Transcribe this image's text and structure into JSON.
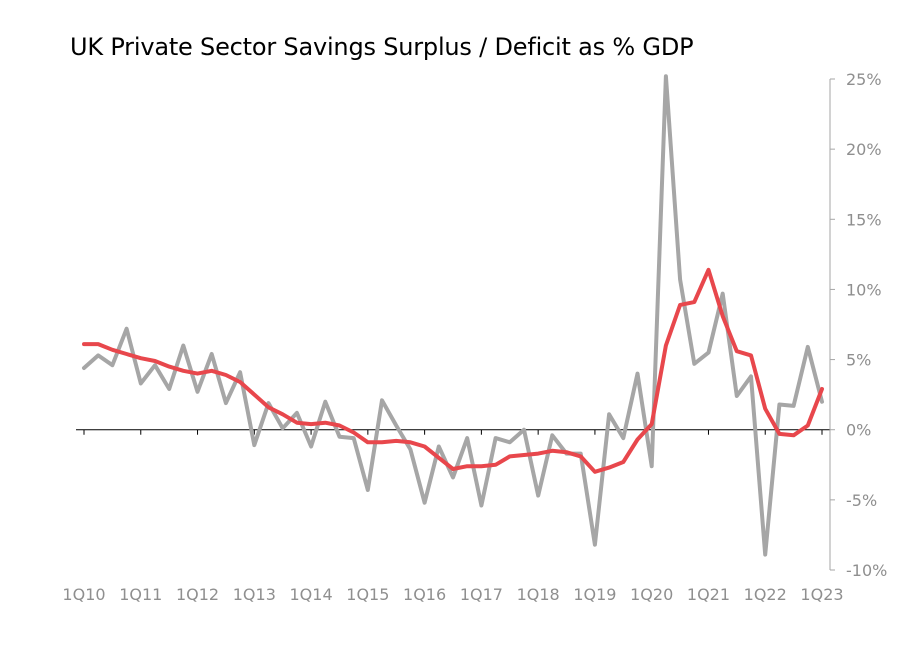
{
  "chart_data": {
    "type": "line",
    "title": "UK Private Sector Savings Surplus / Deficit as % GDP",
    "x": [
      "1Q10",
      "2Q10",
      "3Q10",
      "4Q10",
      "1Q11",
      "2Q11",
      "3Q11",
      "4Q11",
      "1Q12",
      "2Q12",
      "3Q12",
      "4Q12",
      "1Q13",
      "2Q13",
      "3Q13",
      "4Q13",
      "1Q14",
      "2Q14",
      "3Q14",
      "4Q14",
      "1Q15",
      "2Q15",
      "3Q15",
      "4Q15",
      "1Q16",
      "2Q16",
      "3Q16",
      "4Q16",
      "1Q17",
      "2Q17",
      "3Q17",
      "4Q17",
      "1Q18",
      "2Q18",
      "3Q18",
      "4Q18",
      "1Q19",
      "2Q19",
      "3Q19",
      "4Q19",
      "1Q20",
      "2Q20",
      "3Q20",
      "4Q20",
      "1Q21",
      "2Q21",
      "3Q21",
      "4Q21",
      "1Q22",
      "2Q22",
      "3Q22",
      "4Q22",
      "1Q23"
    ],
    "x_tick_labels": [
      "1Q10",
      "1Q11",
      "1Q12",
      "1Q13",
      "1Q14",
      "1Q15",
      "1Q16",
      "1Q17",
      "1Q18",
      "1Q19",
      "1Q20",
      "1Q21",
      "1Q22",
      "1Q23"
    ],
    "y_tick_labels": [
      "25%",
      "20%",
      "15%",
      "10%",
      "5%",
      "0%",
      "-5%",
      "-10%"
    ],
    "ylim": [
      -10,
      25
    ],
    "y_axis_side": "right",
    "grid": false,
    "legend": "none",
    "series": [
      {
        "color": "#a6a6a6",
        "values": [
          4.4,
          5.3,
          4.6,
          7.2,
          3.3,
          4.6,
          2.9,
          6.0,
          2.7,
          5.4,
          1.9,
          4.1,
          -1.1,
          1.9,
          0.1,
          1.2,
          -1.2,
          2.0,
          -0.5,
          -0.6,
          -4.3,
          2.1,
          0.3,
          -1.4,
          -5.2,
          -1.2,
          -3.4,
          -0.6,
          -5.4,
          -0.6,
          -0.9,
          0.0,
          -4.7,
          -0.4,
          -1.7,
          -1.7,
          -8.2,
          1.1,
          -0.6,
          4.0,
          -2.6,
          25.2,
          10.7,
          4.7,
          5.5,
          9.7,
          2.4,
          3.8,
          -8.9,
          1.8,
          1.7,
          5.9,
          2.0
        ]
      },
      {
        "color": "#e8474c",
        "values": [
          6.1,
          6.1,
          5.7,
          5.4,
          5.1,
          4.9,
          4.5,
          4.2,
          4.0,
          4.2,
          3.9,
          3.4,
          2.5,
          1.6,
          1.1,
          0.5,
          0.4,
          0.5,
          0.3,
          -0.2,
          -0.9,
          -0.9,
          -0.8,
          -0.9,
          -1.2,
          -2.0,
          -2.8,
          -2.6,
          -2.6,
          -2.5,
          -1.9,
          -1.8,
          -1.7,
          -1.5,
          -1.6,
          -1.9,
          -3.0,
          -2.7,
          -2.3,
          -0.7,
          0.4,
          6.0,
          8.9,
          9.1,
          11.4,
          8.1,
          5.6,
          5.3,
          1.5,
          -0.3,
          -0.4,
          0.3,
          2.9
        ]
      }
    ]
  }
}
